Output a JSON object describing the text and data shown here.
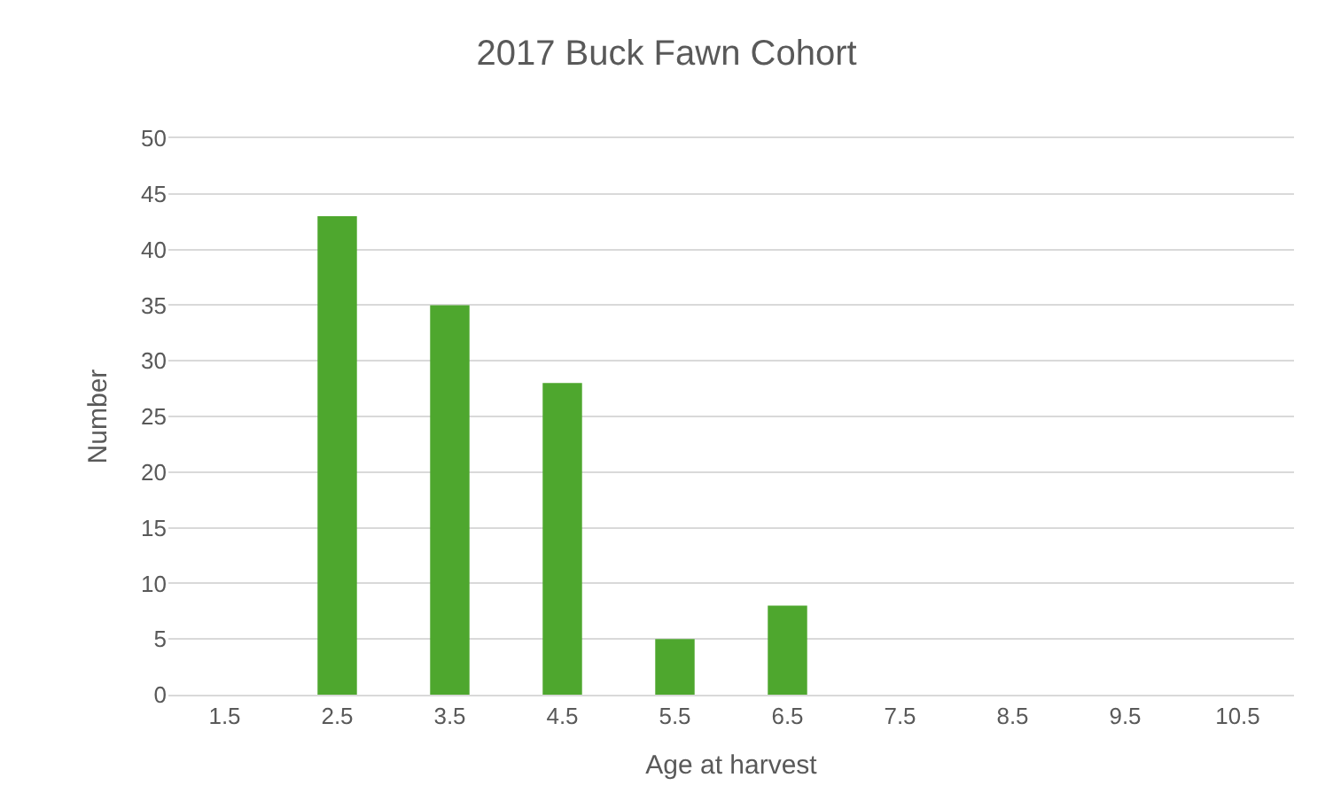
{
  "chart_data": {
    "type": "bar",
    "title": "2017 Buck Fawn Cohort",
    "xlabel": "Age at harvest",
    "ylabel": "Number",
    "categories": [
      "1.5",
      "2.5",
      "3.5",
      "4.5",
      "5.5",
      "6.5",
      "7.5",
      "8.5",
      "9.5",
      "10.5"
    ],
    "values": [
      0,
      43,
      35,
      28,
      5,
      8,
      0,
      0,
      0,
      0
    ],
    "color": "#4ea72e",
    "ylim": [
      0,
      50
    ],
    "yticks": [
      0,
      5,
      10,
      15,
      20,
      25,
      30,
      35,
      40,
      45,
      50
    ],
    "grid": "y",
    "legend": false
  }
}
